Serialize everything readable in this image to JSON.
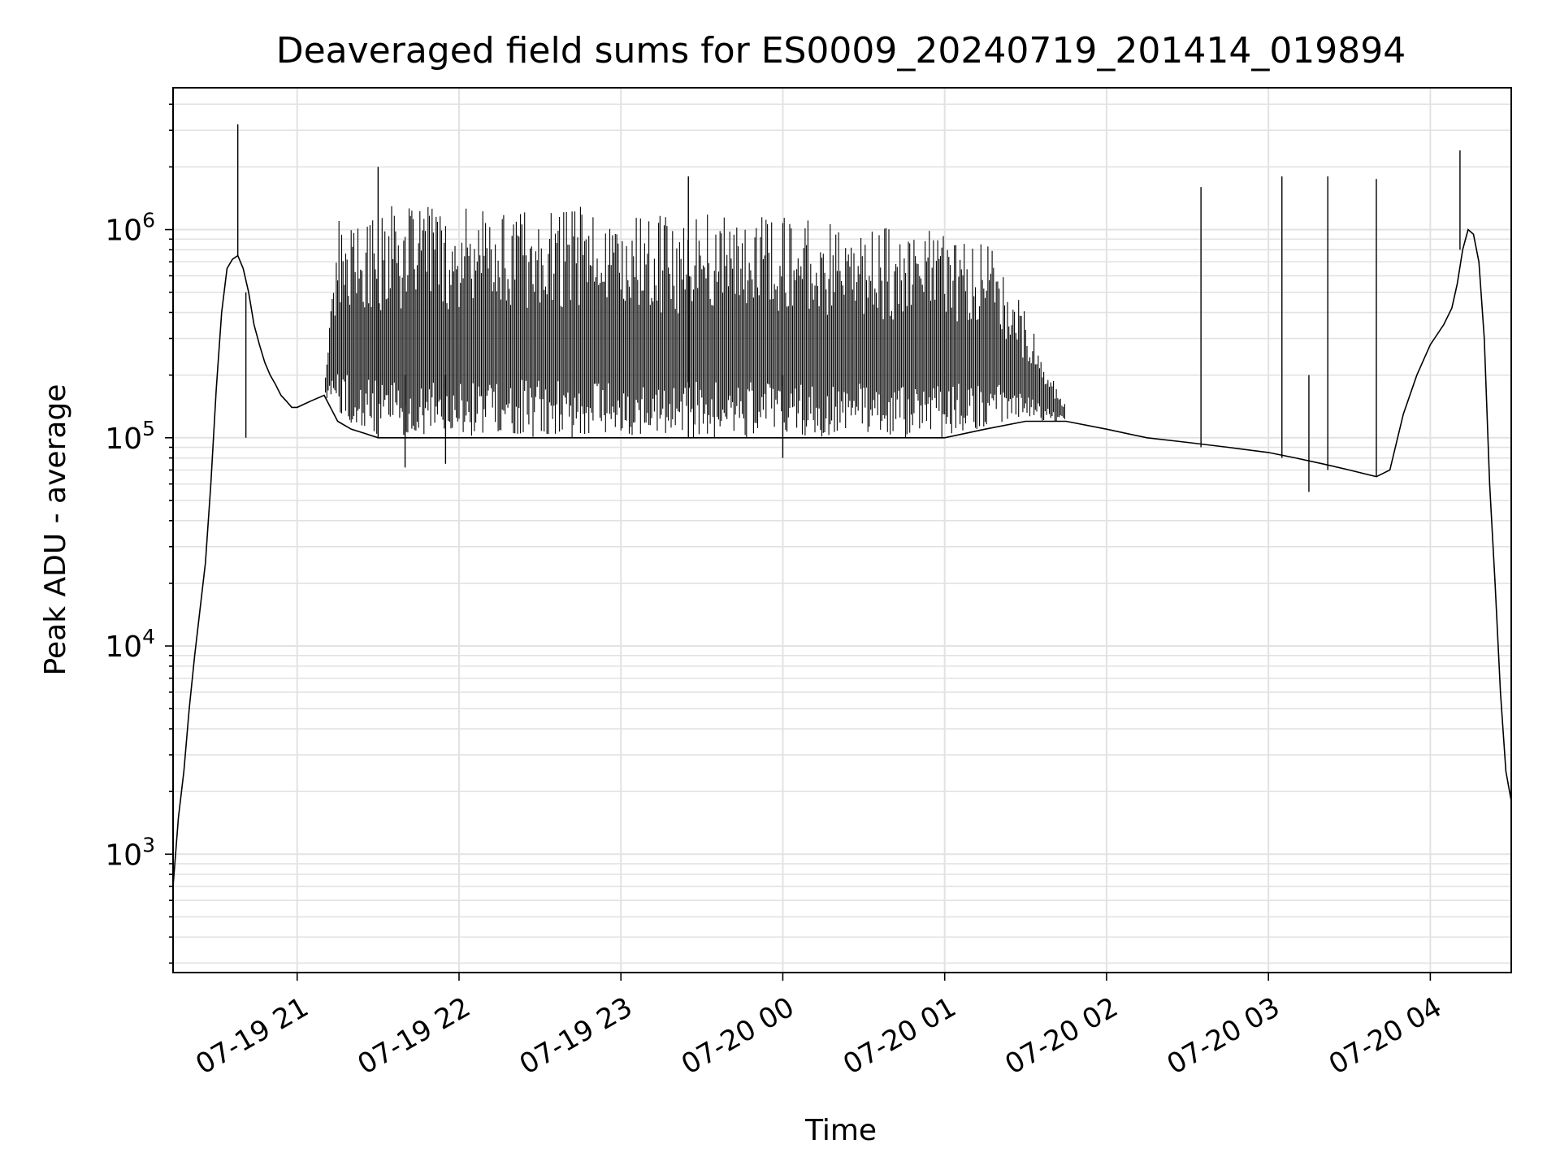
{
  "chart_data": {
    "type": "line",
    "title": "Deaveraged field sums for ES0009_20240719_201414_019894",
    "xlabel": "Time",
    "ylabel": "Peak ADU - average",
    "yscale": "log",
    "grid": true,
    "legend": "none",
    "xlim": [
      "2024-07-19 20:14",
      "2024-07-20 04:30"
    ],
    "ylim": [
      270,
      4800000
    ],
    "x_ticks": [
      {
        "label": "07-19 21",
        "time": "2024-07-19 21:00"
      },
      {
        "label": "07-19 22",
        "time": "2024-07-19 22:00"
      },
      {
        "label": "07-19 23",
        "time": "2024-07-19 23:00"
      },
      {
        "label": "07-20 00",
        "time": "2024-07-20 00:00"
      },
      {
        "label": "07-20 01",
        "time": "2024-07-20 01:00"
      },
      {
        "label": "07-20 02",
        "time": "2024-07-20 02:00"
      },
      {
        "label": "07-20 03",
        "time": "2024-07-20 03:00"
      },
      {
        "label": "07-20 04",
        "time": "2024-07-20 04:00"
      }
    ],
    "y_ticks": [
      {
        "mantissa": "10",
        "exponent": "3",
        "value": 1000
      },
      {
        "mantissa": "10",
        "exponent": "4",
        "value": 10000
      },
      {
        "mantissa": "10",
        "exponent": "5",
        "value": 100000
      },
      {
        "mantissa": "10",
        "exponent": "6",
        "value": 1000000
      }
    ],
    "series": [
      {
        "color": "#000000",
        "x": [
          "2024-07-19 20:14",
          "2024-07-19 20:16",
          "2024-07-19 20:18",
          "2024-07-19 20:20",
          "2024-07-19 20:22",
          "2024-07-19 20:24",
          "2024-07-19 20:26",
          "2024-07-19 20:28",
          "2024-07-19 20:30",
          "2024-07-19 20:32",
          "2024-07-19 20:34",
          "2024-07-19 20:36",
          "2024-07-19 20:38",
          "2024-07-19 20:40",
          "2024-07-19 20:42",
          "2024-07-19 20:44",
          "2024-07-19 20:46",
          "2024-07-19 20:48",
          "2024-07-19 20:50",
          "2024-07-19 20:52",
          "2024-07-19 20:54",
          "2024-07-19 20:56",
          "2024-07-19 20:58",
          "2024-07-19 21:00",
          "2024-07-19 21:05",
          "2024-07-19 21:10",
          "2024-07-19 21:15",
          "2024-07-19 21:20",
          "2024-07-19 21:25",
          "2024-07-19 21:30",
          "2024-07-19 21:35",
          "2024-07-19 21:40",
          "2024-07-19 21:50",
          "2024-07-19 22:00",
          "2024-07-19 22:15",
          "2024-07-19 22:30",
          "2024-07-19 22:45",
          "2024-07-19 23:00",
          "2024-07-19 23:15",
          "2024-07-19 23:30",
          "2024-07-19 23:45",
          "2024-07-20 00:00",
          "2024-07-20 00:15",
          "2024-07-20 00:30",
          "2024-07-20 00:45",
          "2024-07-20 01:00",
          "2024-07-20 01:15",
          "2024-07-20 01:30",
          "2024-07-20 01:45",
          "2024-07-20 02:00",
          "2024-07-20 02:15",
          "2024-07-20 02:30",
          "2024-07-20 02:45",
          "2024-07-20 03:00",
          "2024-07-20 03:10",
          "2024-07-20 03:20",
          "2024-07-20 03:30",
          "2024-07-20 03:40",
          "2024-07-20 03:45",
          "2024-07-20 03:50",
          "2024-07-20 03:55",
          "2024-07-20 04:00",
          "2024-07-20 04:05",
          "2024-07-20 04:08",
          "2024-07-20 04:10",
          "2024-07-20 04:12",
          "2024-07-20 04:14",
          "2024-07-20 04:16",
          "2024-07-20 04:18",
          "2024-07-20 04:20",
          "2024-07-20 04:22",
          "2024-07-20 04:24",
          "2024-07-20 04:26",
          "2024-07-20 04:28",
          "2024-07-20 04:30"
        ],
        "y": [
          700,
          1500,
          2500,
          5000,
          9000,
          15000,
          25000,
          60000,
          170000,
          400000,
          650000,
          720000,
          750000,
          650000,
          500000,
          350000,
          280000,
          230000,
          200000,
          180000,
          160000,
          150000,
          140000,
          140000,
          150000,
          160000,
          1300000,
          1300000,
          1300000,
          1300000,
          1300000,
          1300000,
          1300000,
          1300000,
          1300000,
          1300000,
          1300000,
          1300000,
          1200000,
          1200000,
          1200000,
          1200000,
          1100000,
          1100000,
          1000000,
          1000000,
          1000000,
          400000,
          140000,
          130000,
          120000,
          110000,
          105000,
          100000,
          95000,
          90000,
          85000,
          80000,
          100000,
          130000,
          200000,
          280000,
          350000,
          420000,
          550000,
          800000,
          1000000,
          950000,
          700000,
          300000,
          60000,
          20000,
          6000,
          2500,
          1800
        ],
        "band_bottom": [
          700,
          1500,
          2500,
          5000,
          9000,
          15000,
          25000,
          60000,
          170000,
          400000,
          650000,
          720000,
          750000,
          650000,
          500000,
          350000,
          280000,
          230000,
          200000,
          180000,
          160000,
          150000,
          140000,
          140000,
          150000,
          160000,
          120000,
          110000,
          105000,
          100000,
          100000,
          100000,
          100000,
          100000,
          100000,
          100000,
          100000,
          100000,
          100000,
          100000,
          100000,
          100000,
          100000,
          100000,
          100000,
          100000,
          110000,
          120000,
          120000,
          110000,
          100000,
          95000,
          90000,
          85000,
          80000,
          75000,
          70000,
          65000,
          70000,
          130000,
          200000,
          280000,
          350000,
          420000,
          550000,
          800000,
          1000000,
          950000,
          700000,
          300000,
          60000,
          20000,
          6000,
          2500,
          1800
        ],
        "spikes": [
          {
            "x": "2024-07-19 20:38",
            "y": 3200000
          },
          {
            "x": "2024-07-19 20:41",
            "y": 100000
          },
          {
            "x": "2024-07-19 21:30",
            "y": 2000000
          },
          {
            "x": "2024-07-19 21:40",
            "y": 72000
          },
          {
            "x": "2024-07-19 21:55",
            "y": 75000
          },
          {
            "x": "2024-07-19 23:25",
            "y": 1800000
          },
          {
            "x": "2024-07-20 00:00",
            "y": 80000
          },
          {
            "x": "2024-07-20 02:35",
            "y": 1600000
          },
          {
            "x": "2024-07-20 03:05",
            "y": 1800000
          },
          {
            "x": "2024-07-20 03:15",
            "y": 55000
          },
          {
            "x": "2024-07-20 03:22",
            "y": 1800000
          },
          {
            "x": "2024-07-20 03:40",
            "y": 1750000
          },
          {
            "x": "2024-07-20 04:11",
            "y": 2400000
          }
        ]
      }
    ]
  }
}
